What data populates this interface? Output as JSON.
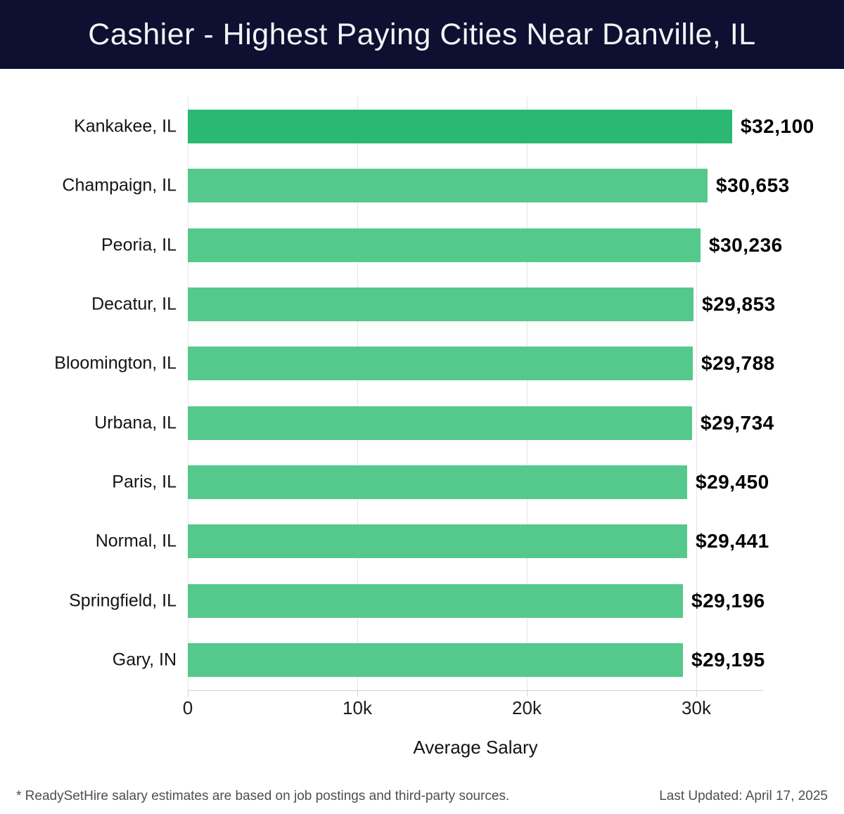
{
  "header": {
    "title": "Cashier - Highest Paying Cities Near Danville, IL"
  },
  "chart_data": {
    "type": "bar",
    "orientation": "horizontal",
    "title": "Cashier - Highest Paying Cities Near Danville, IL",
    "categories": [
      "Kankakee, IL",
      "Champaign, IL",
      "Peoria, IL",
      "Decatur, IL",
      "Bloomington, IL",
      "Urbana, IL",
      "Paris, IL",
      "Normal, IL",
      "Springfield, IL",
      "Gary, IN"
    ],
    "values": [
      32100,
      30653,
      30236,
      29853,
      29788,
      29734,
      29450,
      29441,
      29196,
      29195
    ],
    "value_labels": [
      "$32,100",
      "$30,653",
      "$30,236",
      "$29,853",
      "$29,788",
      "$29,734",
      "$29,450",
      "$29,441",
      "$29,196",
      "$29,195"
    ],
    "xlabel": "Average Salary",
    "ylabel": "",
    "xlim": [
      0,
      33940
    ],
    "xticks": [
      {
        "value": 0,
        "label": "0"
      },
      {
        "value": 10000,
        "label": "10k"
      },
      {
        "value": 20000,
        "label": "20k"
      },
      {
        "value": 30000,
        "label": "30k"
      }
    ],
    "grid": "vertical",
    "legend": "none",
    "highlight_index": 0,
    "colors": {
      "bar_highlight": "#2bb873",
      "bar_default": "#55c98c"
    }
  },
  "footer": {
    "note": "* ReadySetHire salary estimates are based on job postings and third-party sources.",
    "last_updated": "Last Updated: April 17, 2025"
  },
  "colors": {
    "header_bg": "#0e1031",
    "title_text": "#f3f4f6",
    "grid": "#e4e4e4",
    "axis": "#d4d4d4",
    "label_text": "#141414",
    "value_text": "#000000",
    "tick_text": "#1c1c1c",
    "footer_text": "#4f4f4f"
  }
}
